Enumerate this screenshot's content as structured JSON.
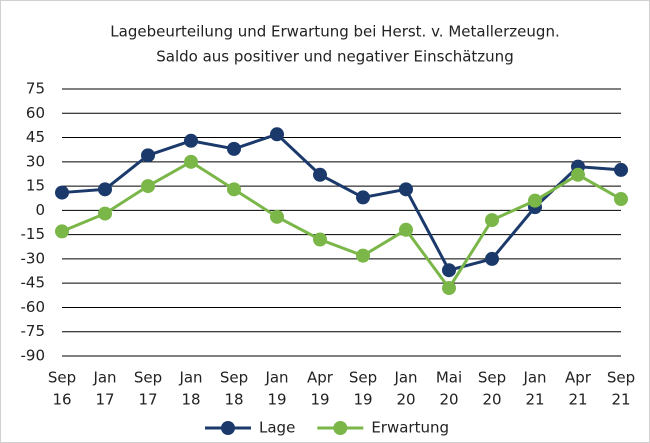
{
  "chart_data": {
    "type": "line",
    "title": [
      "Lagebeurteilung und Erwartung bei Herst. v. Metallerzeugn.",
      "Saldo aus positiver und negativer Einschätzung"
    ],
    "categories": [
      [
        "Sep",
        "16"
      ],
      [
        "Jan",
        "17"
      ],
      [
        "Sep",
        "17"
      ],
      [
        "Jan",
        "18"
      ],
      [
        "Sep",
        "18"
      ],
      [
        "Jan",
        "19"
      ],
      [
        "Apr",
        "19"
      ],
      [
        "Sep",
        "19"
      ],
      [
        "Jan",
        "20"
      ],
      [
        "Mai",
        "20"
      ],
      [
        "Sep",
        "20"
      ],
      [
        "Jan",
        "21"
      ],
      [
        "Apr",
        "21"
      ],
      [
        "Sep",
        "21"
      ]
    ],
    "series": [
      {
        "name": "Lage",
        "color": "#1b3a6b",
        "values": [
          11,
          13,
          34,
          43,
          38,
          47,
          22,
          8,
          13,
          -37,
          -30,
          2,
          27,
          25
        ]
      },
      {
        "name": "Erwartung",
        "color": "#7ab648",
        "values": [
          -13,
          -2,
          15,
          30,
          13,
          -4,
          -18,
          -28,
          -12,
          -48,
          -6,
          6,
          22,
          7
        ]
      }
    ],
    "ylim": [
      -90,
      75
    ],
    "yticks": [
      -90,
      -75,
      -60,
      -45,
      -30,
      -15,
      0,
      15,
      30,
      45,
      60,
      75
    ],
    "grid": true,
    "legend": "bottom"
  }
}
